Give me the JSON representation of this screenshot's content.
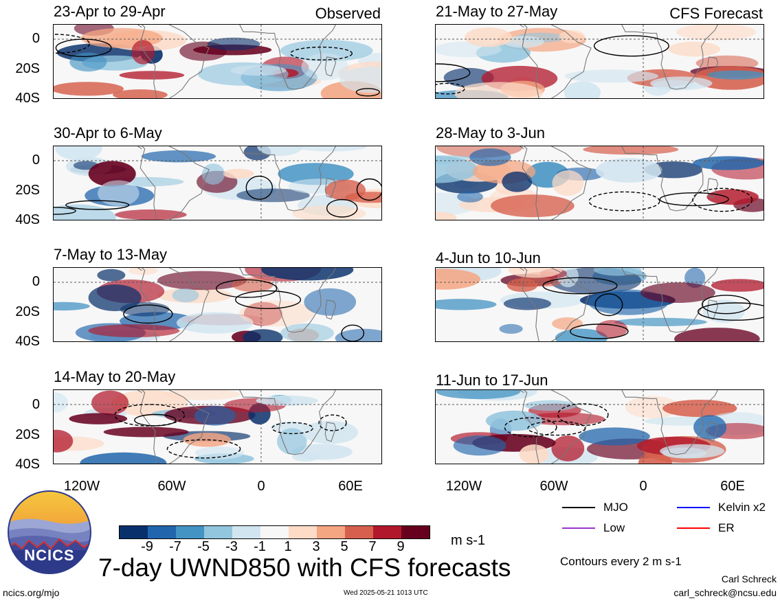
{
  "panels_left": [
    {
      "title": "23-Apr to 29-Apr",
      "tag": "Observed"
    },
    {
      "title": "30-Apr to 6-May",
      "tag": ""
    },
    {
      "title": "7-May to 13-May",
      "tag": ""
    },
    {
      "title": "14-May to 20-May",
      "tag": ""
    }
  ],
  "panels_right": [
    {
      "title": "21-May to 27-May",
      "tag": "CFS Forecast"
    },
    {
      "title": "28-May to 3-Jun",
      "tag": ""
    },
    {
      "title": "4-Jun to 10-Jun",
      "tag": ""
    },
    {
      "title": "11-Jun to 17-Jun",
      "tag": ""
    }
  ],
  "y_ticks": [
    "0",
    "20S",
    "40S"
  ],
  "x_ticks": [
    "120W",
    "60W",
    "0",
    "60E"
  ],
  "colorbar": {
    "colors": [
      "#08306b",
      "#2166ac",
      "#4393c3",
      "#92c5de",
      "#d1e5f0",
      "#f7f7f7",
      "#fddbc7",
      "#f4a582",
      "#d6604d",
      "#b2182b",
      "#67001f"
    ],
    "labels": [
      "-9",
      "-7",
      "-5",
      "-3",
      "-1",
      "1",
      "3",
      "5",
      "7",
      "9"
    ],
    "units": "m s-1"
  },
  "legend": {
    "mjo": "MJO",
    "mjo_color": "#000000",
    "kelvin": "Kelvin x2",
    "kelvin_color": "#0000ff",
    "low": "Low",
    "low_color": "#9933cc",
    "er": "ER",
    "er_color": "#ff0000",
    "contours": "Contours every 2 m s-1"
  },
  "logo_text": "NCICS",
  "main_title": "7-day UWND850 with CFS forecasts",
  "footer": {
    "url": "ncics.org/mjo",
    "timestamp": "Wed 2025-05-21 1013 UTC",
    "author": "Carl Schreck",
    "email": "carl_schreck@ncsu.edu"
  }
}
